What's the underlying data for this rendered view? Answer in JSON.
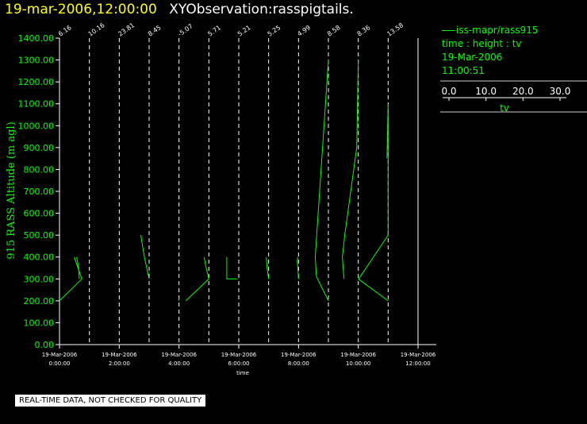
{
  "header": {
    "timestamp": "19-mar-2006,12:00:00",
    "observation": "XYObservation:rasspigtails."
  },
  "legend": {
    "series_name": "iss-mapr/rass915",
    "variables": "time : height : tv",
    "date": "19-Mar-2006",
    "time": "11:00:51",
    "scale_ticks": [
      "0.0",
      "10.0",
      "20.0",
      "30.0"
    ],
    "scale_label": "tv"
  },
  "disclaimer": "REAL-TIME DATA, NOT CHECKED FOR QUALITY",
  "colors": {
    "background": "#000000",
    "data": "#00ff00",
    "title_time": "#ffff00",
    "grid": "#ffffff"
  },
  "chart_data": {
    "type": "line",
    "ylabel": "915 RASS Altitude (m agl)",
    "xlabel": "time",
    "ylim": [
      0,
      1400
    ],
    "yticks": [
      "0.00",
      "100.00",
      "200.00",
      "300.00",
      "400.00",
      "500.00",
      "600.00",
      "700.00",
      "800.00",
      "900.00",
      "1000.00",
      "1100.00",
      "1200.00",
      "1300.00",
      "1400.00"
    ],
    "xticks": [
      {
        "hour": 0,
        "date": "19-Mar-2006",
        "time": "0:00:00"
      },
      {
        "hour": 2,
        "date": "19-Mar-2006",
        "time": "2:00:00"
      },
      {
        "hour": 4,
        "date": "19-Mar-2006",
        "time": "4:00:00"
      },
      {
        "hour": 6,
        "date": "19-Mar-2006",
        "time": "6:00:00"
      },
      {
        "hour": 8,
        "date": "19-Mar-2006",
        "time": "8:00:00"
      },
      {
        "hour": 10,
        "date": "19-Mar-2006",
        "time": "10:00:00"
      },
      {
        "hour": 12,
        "date": "19-Mar-2006",
        "time": "12:00:00"
      }
    ],
    "xlim_hours": [
      0,
      12
    ],
    "pigtail_scale": {
      "tv_per_hour": 30
    },
    "profiles": [
      {
        "hour": 0,
        "label": "6.16",
        "points": [
          [
            0,
            200
          ],
          [
            22.4,
            300
          ],
          [
            14.8,
            400
          ]
        ]
      },
      {
        "hour": 1,
        "label": "10.16",
        "points": [
          [
            -10.16,
            300
          ],
          [
            -10.8,
            350
          ],
          [
            -12.8,
            400
          ]
        ]
      },
      {
        "hour": 2,
        "label": "23.81",
        "points": []
      },
      {
        "hour": 3,
        "label": "8.45",
        "points": [
          [
            0,
            300
          ],
          [
            -4.8,
            400
          ],
          [
            -8.4,
            500
          ]
        ]
      },
      {
        "hour": 4,
        "label": "-5.07",
        "points": [
          [
            0,
            200
          ],
          [
            0,
            210
          ]
        ]
      },
      {
        "hour": 5,
        "label": "5.71",
        "points": [
          [
            -23.2,
            200
          ],
          [
            0,
            300
          ],
          [
            -3.2,
            360
          ],
          [
            -4.8,
            400
          ]
        ]
      },
      {
        "hour": 6,
        "label": "5.21",
        "points": [
          [
            -1.2,
            300
          ],
          [
            -12,
            300
          ],
          [
            -12,
            400
          ]
        ]
      },
      {
        "hour": 7,
        "label": "5.25",
        "points": [
          [
            0,
            300
          ],
          [
            -1.6,
            350
          ],
          [
            -2.4,
            400
          ]
        ]
      },
      {
        "hour": 8,
        "label": "4.99",
        "points": [
          [
            0,
            300
          ],
          [
            -1.2,
            380
          ],
          [
            -0.8,
            400
          ]
        ]
      },
      {
        "hour": 9,
        "label": "8.58",
        "points": [
          [
            0,
            200
          ],
          [
            -12,
            310
          ],
          [
            -13.2,
            400
          ],
          [
            0,
            1300
          ]
        ]
      },
      {
        "hour": 10,
        "label": "8.36",
        "points": [
          [
            -14.4,
            300
          ],
          [
            -16,
            400
          ],
          [
            -13.6,
            500
          ],
          [
            -1.6,
            900
          ],
          [
            0,
            1300
          ]
        ]
      },
      {
        "hour": 11,
        "label": "13.58",
        "points": [
          [
            -29.6,
            300
          ],
          [
            0,
            500
          ],
          [
            0,
            1100
          ],
          [
            -1.2,
            850
          ]
        ]
      }
    ],
    "extra_lines": [
      [
        [
          10,
          300
        ],
        [
          11,
          200
        ]
      ]
    ],
    "grid": true
  }
}
